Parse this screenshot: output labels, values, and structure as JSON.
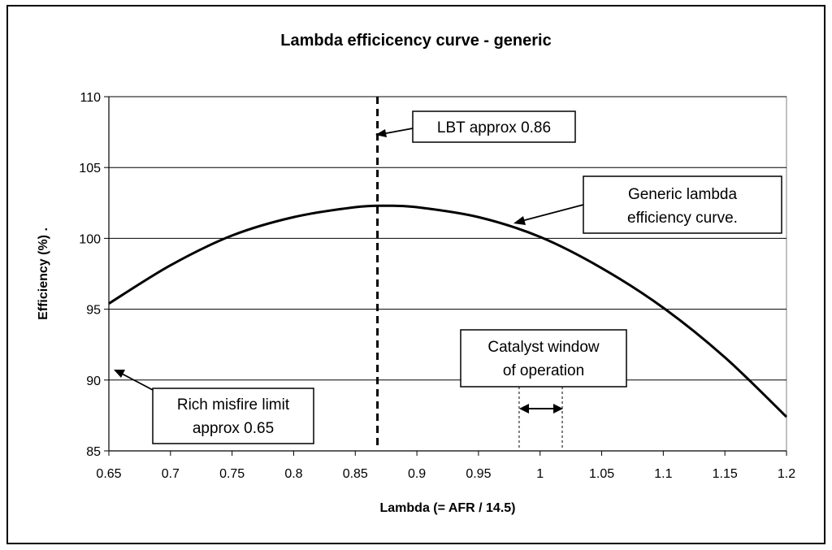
{
  "chart_data": {
    "type": "line",
    "title": "Lambda efficicency curve - generic",
    "xlabel": "Lambda (= AFR / 14.5)",
    "ylabel": "Efficiency (%)  .",
    "xlim": [
      0.65,
      1.2
    ],
    "ylim": [
      85,
      110
    ],
    "x_ticks": [
      "0.65",
      "0.7",
      "0.75",
      "0.8",
      "0.85",
      "0.9",
      "0.95",
      "1",
      "1.05",
      "1.1",
      "1.15",
      "1.2"
    ],
    "y_ticks": [
      "85",
      "90",
      "95",
      "100",
      "105",
      "110"
    ],
    "grid": "horizontal",
    "legend": "none",
    "series": [
      {
        "color": "#000000",
        "x": [
          0.65,
          0.7,
          0.75,
          0.8,
          0.85,
          0.875,
          0.9,
          0.95,
          1.0,
          1.05,
          1.1,
          1.15,
          1.2
        ],
        "y": [
          95.4,
          98.1,
          100.2,
          101.5,
          102.2,
          102.3,
          102.2,
          101.5,
          100.1,
          97.9,
          95.1,
          91.6,
          87.4
        ]
      }
    ],
    "reference_lines": [
      {
        "x": 0.868,
        "style": "dashed"
      },
      {
        "x": 0.983,
        "style": "dotted"
      },
      {
        "x": 1.018,
        "style": "dotted"
      }
    ],
    "annotations": [
      {
        "id": "lbt",
        "lines": [
          "LBT approx 0.86"
        ]
      },
      {
        "id": "curve",
        "lines": [
          "Generic lambda",
          "efficiency curve."
        ]
      },
      {
        "id": "catalyst",
        "lines": [
          "Catalyst window",
          "of operation"
        ]
      },
      {
        "id": "misfire",
        "lines": [
          "Rich misfire limit",
          "approx 0.65"
        ]
      }
    ]
  }
}
